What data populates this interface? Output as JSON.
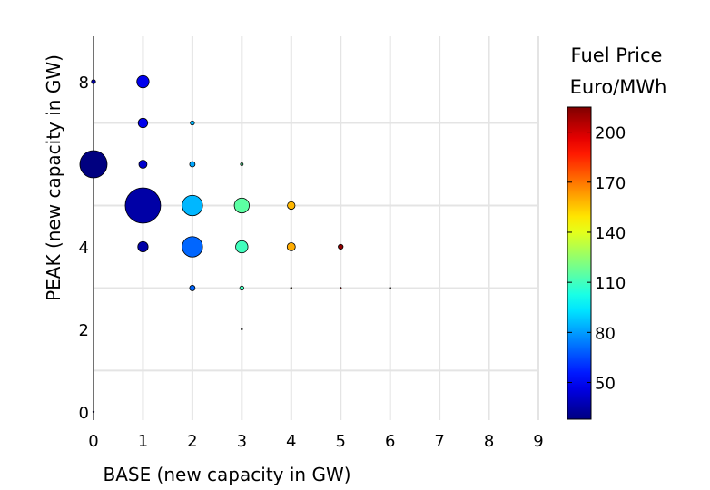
{
  "chart_data": {
    "type": "scatter",
    "xlabel": "BASE (new capacity in GW)",
    "ylabel": "PEAK (new capacity in GW)",
    "xlim": [
      0,
      9
    ],
    "ylim": [
      -0.2,
      9.1
    ],
    "xticks": [
      0,
      1,
      2,
      3,
      4,
      5,
      6,
      7,
      8,
      9
    ],
    "yticks": [
      0,
      2,
      4,
      6,
      8
    ],
    "grid_x": [
      0,
      1,
      2,
      3,
      4,
      5,
      6,
      7,
      8,
      9
    ],
    "grid_y": [
      1,
      3,
      5,
      7
    ],
    "grid": true,
    "colorbar": {
      "title_line1": "Fuel Price",
      "title_line2": "Euro/MWh",
      "range": [
        28,
        215
      ],
      "ticks": [
        50,
        80,
        110,
        140,
        170,
        200
      ],
      "colormap": "jet"
    },
    "points": [
      {
        "x": 0,
        "y": 8,
        "size": 0.15,
        "price": 35
      },
      {
        "x": 1,
        "y": 8,
        "size": 0.45,
        "price": 48
      },
      {
        "x": 1,
        "y": 7,
        "size": 0.35,
        "price": 48
      },
      {
        "x": 2,
        "y": 7,
        "size": 0.15,
        "price": 85
      },
      {
        "x": 0,
        "y": 6,
        "size": 1.0,
        "price": 28
      },
      {
        "x": 1,
        "y": 6,
        "size": 0.3,
        "price": 42
      },
      {
        "x": 2,
        "y": 6,
        "size": 0.2,
        "price": 82
      },
      {
        "x": 3,
        "y": 6,
        "size": 0.1,
        "price": 115
      },
      {
        "x": 1,
        "y": 5,
        "size": 1.3,
        "price": 35
      },
      {
        "x": 2,
        "y": 5,
        "size": 0.75,
        "price": 85
      },
      {
        "x": 3,
        "y": 5,
        "size": 0.55,
        "price": 115
      },
      {
        "x": 4,
        "y": 5,
        "size": 0.28,
        "price": 158
      },
      {
        "x": 1,
        "y": 4,
        "size": 0.38,
        "price": 35
      },
      {
        "x": 2,
        "y": 4,
        "size": 0.75,
        "price": 70
      },
      {
        "x": 3,
        "y": 4,
        "size": 0.45,
        "price": 110
      },
      {
        "x": 4,
        "y": 4,
        "size": 0.3,
        "price": 160
      },
      {
        "x": 5,
        "y": 4,
        "size": 0.18,
        "price": 212
      },
      {
        "x": 2,
        "y": 3,
        "size": 0.2,
        "price": 70
      },
      {
        "x": 3,
        "y": 3,
        "size": 0.15,
        "price": 110
      },
      {
        "x": 4,
        "y": 3,
        "size": 0.05,
        "price": 160
      },
      {
        "x": 5,
        "y": 3,
        "size": 0.03,
        "price": 200
      },
      {
        "x": 6,
        "y": 3,
        "size": 0.02,
        "price": 200
      },
      {
        "x": 3,
        "y": 2,
        "size": 0.02,
        "price": 120
      },
      {
        "x": 0,
        "y": 0,
        "size": 0.02,
        "price": 40
      }
    ]
  }
}
